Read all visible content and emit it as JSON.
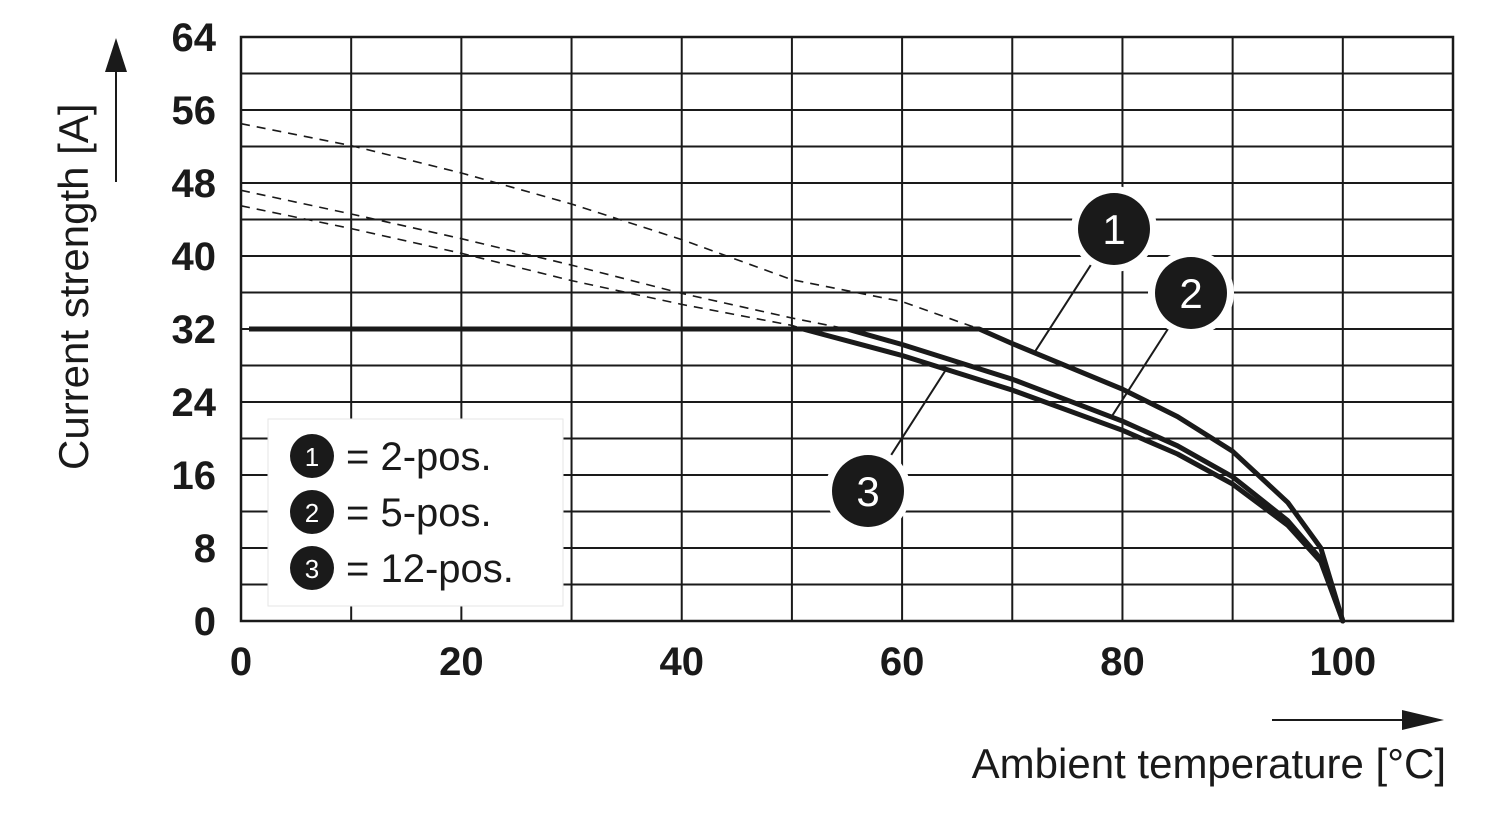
{
  "chart_data": {
    "type": "line",
    "xlabel": "Ambient temperature [°C]",
    "ylabel": "Current strength [A]",
    "xlim": [
      0,
      110
    ],
    "ylim": [
      0,
      64
    ],
    "x_ticks": [
      "0",
      "20",
      "40",
      "60",
      "80",
      "100"
    ],
    "y_ticks": [
      "0",
      "8",
      "16",
      "24",
      "32",
      "40",
      "48",
      "56",
      "64"
    ],
    "grid": true,
    "legend_position": "bottom-left",
    "legend": [
      {
        "marker": "1",
        "label": "= 2-pos."
      },
      {
        "marker": "2",
        "label": "= 5-pos."
      },
      {
        "marker": "3",
        "label": "= 12-pos."
      }
    ],
    "plateau": {
      "x": [
        0,
        67
      ],
      "y": 32
    },
    "series": [
      {
        "marker": "1",
        "x": [
          0,
          10,
          20,
          30,
          40,
          50,
          60,
          67,
          70,
          80,
          85,
          90,
          95,
          98,
          100
        ],
        "y": [
          54.5,
          52.1,
          49.1,
          45.7,
          41.8,
          37.4,
          35.0,
          32,
          30.4,
          25.4,
          22.4,
          18.6,
          13.0,
          8.0,
          0
        ],
        "derated_from_x": 67
      },
      {
        "marker": "2",
        "x": [
          0,
          10,
          20,
          30,
          40,
          50,
          55,
          60,
          70,
          80,
          85,
          90,
          95,
          98,
          100
        ],
        "y": [
          47.2,
          44.6,
          41.9,
          39.0,
          35.9,
          33.2,
          32,
          30.3,
          26.5,
          21.9,
          19.2,
          15.8,
          11.0,
          6.8,
          0
        ],
        "derated_from_x": 55
      },
      {
        "marker": "3",
        "x": [
          0,
          10,
          20,
          30,
          40,
          50,
          51,
          60,
          70,
          80,
          85,
          90,
          95,
          98,
          100
        ],
        "y": [
          45.5,
          43.0,
          40.3,
          37.3,
          34.7,
          32.4,
          32,
          29.1,
          25.3,
          20.9,
          18.3,
          15.0,
          10.5,
          6.5,
          0
        ],
        "derated_from_x": 51
      }
    ],
    "callouts": [
      {
        "marker": "1",
        "at_x": 72
      },
      {
        "marker": "2",
        "at_x": 79
      },
      {
        "marker": "3",
        "at_x": 64
      }
    ]
  }
}
